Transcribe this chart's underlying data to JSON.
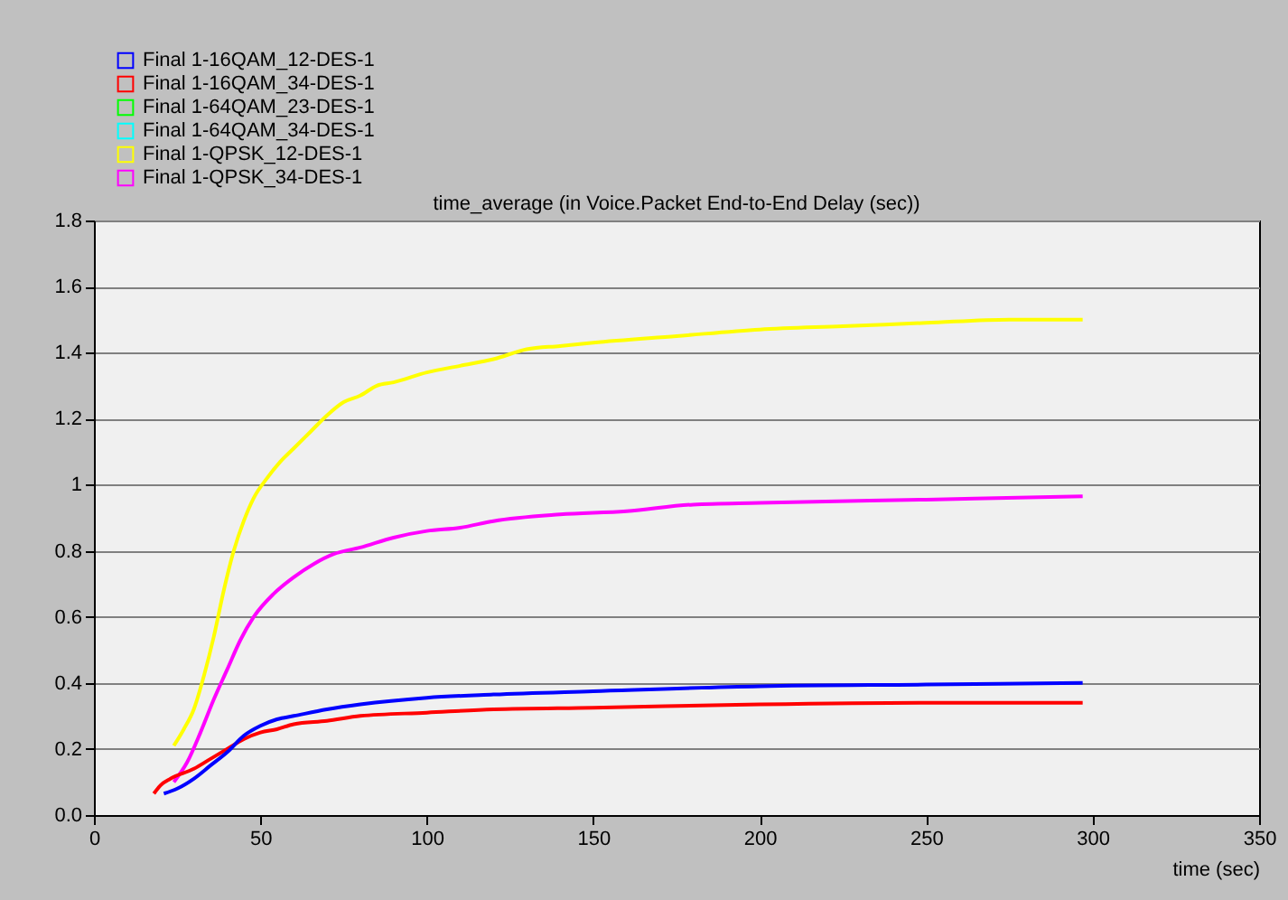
{
  "chart_data": {
    "type": "line",
    "title": "time_average (in Voice.Packet End-to-End Delay (sec))",
    "xlabel": "time (sec)",
    "xlim": [
      0,
      350
    ],
    "xticks": [
      0,
      50,
      100,
      150,
      200,
      250,
      300,
      350
    ],
    "ylim": [
      0,
      1.8
    ],
    "yticks": [
      {
        "value": 0,
        "label": "0.0"
      },
      0.2,
      0.4,
      0.6,
      0.8,
      1,
      1.2,
      1.4,
      1.6,
      1.8
    ],
    "grid": "y",
    "legend": "top left",
    "series": [
      {
        "name": "Final 1-16QAM_12-DES-1",
        "color": "#0000ff",
        "x": [
          21,
          25,
          30,
          35,
          40,
          45,
          50,
          55,
          60,
          70,
          80,
          100,
          120,
          150,
          200,
          250,
          297
        ],
        "values": [
          0.065,
          0.08,
          0.11,
          0.15,
          0.19,
          0.24,
          0.27,
          0.29,
          0.3,
          0.32,
          0.335,
          0.355,
          0.365,
          0.375,
          0.39,
          0.395,
          0.4
        ]
      },
      {
        "name": "Final 1-16QAM_34-DES-1",
        "color": "#ff0000",
        "x": [
          18,
          20,
          23,
          30,
          35,
          40,
          45,
          50,
          55,
          60,
          70,
          80,
          100,
          120,
          150,
          200,
          250,
          297
        ],
        "values": [
          0.065,
          0.09,
          0.11,
          0.14,
          0.17,
          0.2,
          0.23,
          0.25,
          0.26,
          0.275,
          0.285,
          0.3,
          0.31,
          0.32,
          0.325,
          0.335,
          0.34,
          0.34
        ]
      },
      {
        "name": "Final 1-64QAM_23-DES-1",
        "color": "#00ff00",
        "values": [
          null
        ]
      },
      {
        "name": "Final 1-64QAM_34-DES-1",
        "color": "#00ffff",
        "values": [
          null
        ]
      },
      {
        "name": "Final 1-QPSK_12-DES-1",
        "color": "#ffff00",
        "x": [
          24,
          27,
          30,
          33,
          36,
          39,
          42,
          45,
          48,
          52,
          56,
          60,
          65,
          70,
          75,
          80,
          85,
          90,
          100,
          110,
          120,
          130,
          140,
          150,
          175,
          200,
          225,
          250,
          275,
          297
        ],
        "values": [
          0.21,
          0.26,
          0.32,
          0.42,
          0.54,
          0.68,
          0.8,
          0.89,
          0.96,
          1.02,
          1.07,
          1.11,
          1.16,
          1.21,
          1.25,
          1.27,
          1.3,
          1.31,
          1.34,
          1.36,
          1.38,
          1.41,
          1.42,
          1.43,
          1.45,
          1.47,
          1.48,
          1.49,
          1.5,
          1.5
        ]
      },
      {
        "name": "Final 1-QPSK_34-DES-1",
        "color": "#ff00ff",
        "x": [
          24,
          28,
          32,
          36,
          40,
          44,
          48,
          54,
          60,
          66,
          72,
          80,
          90,
          100,
          110,
          120,
          140,
          160,
          180,
          200,
          250,
          297
        ],
        "values": [
          0.1,
          0.16,
          0.25,
          0.35,
          0.44,
          0.53,
          0.6,
          0.67,
          0.72,
          0.76,
          0.79,
          0.81,
          0.84,
          0.86,
          0.87,
          0.89,
          0.91,
          0.92,
          0.94,
          0.945,
          0.955,
          0.965
        ]
      }
    ]
  }
}
